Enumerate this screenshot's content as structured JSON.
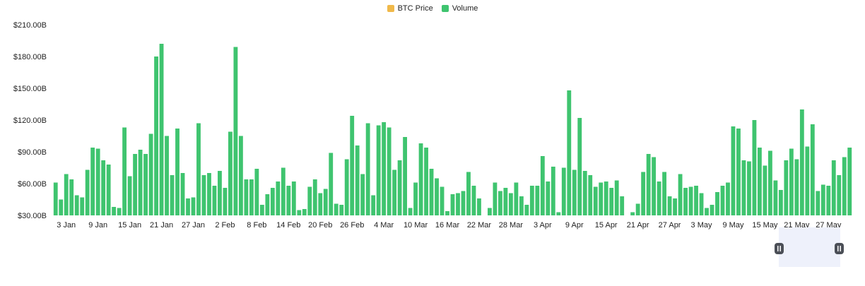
{
  "legend": {
    "items": [
      {
        "label": "BTC Price",
        "color": "#f0b94a"
      },
      {
        "label": "Volume",
        "color": "#3fc46f"
      }
    ]
  },
  "chart_data": {
    "type": "bar",
    "title": "",
    "xlabel": "",
    "ylabel": "",
    "y_unit": "billion USD",
    "ylim": [
      30,
      210
    ],
    "y_ticks": [
      30,
      60,
      90,
      120,
      150,
      180,
      210
    ],
    "y_tick_labels": [
      "$30.00B",
      "$60.00B",
      "$90.00B",
      "$120.00B",
      "$150.00B",
      "$180.00B",
      "$210.00B"
    ],
    "x_tick_labels": [
      {
        "label": "3 Jan",
        "index": 2
      },
      {
        "label": "9 Jan",
        "index": 8
      },
      {
        "label": "15 Jan",
        "index": 14
      },
      {
        "label": "21 Jan",
        "index": 20
      },
      {
        "label": "27 Jan",
        "index": 26
      },
      {
        "label": "2 Feb",
        "index": 32
      },
      {
        "label": "8 Feb",
        "index": 38
      },
      {
        "label": "14 Feb",
        "index": 44
      },
      {
        "label": "20 Feb",
        "index": 50
      },
      {
        "label": "26 Feb",
        "index": 56
      },
      {
        "label": "4 Mar",
        "index": 62
      },
      {
        "label": "10 Mar",
        "index": 68
      },
      {
        "label": "16 Mar",
        "index": 74
      },
      {
        "label": "22 Mar",
        "index": 80
      },
      {
        "label": "28 Mar",
        "index": 86
      },
      {
        "label": "3 Apr",
        "index": 92
      },
      {
        "label": "9 Apr",
        "index": 98
      },
      {
        "label": "15 Apr",
        "index": 104
      },
      {
        "label": "21 Apr",
        "index": 110
      },
      {
        "label": "27 Apr",
        "index": 116
      },
      {
        "label": "3 May",
        "index": 122
      },
      {
        "label": "9 May",
        "index": 128
      },
      {
        "label": "15 May",
        "index": 134
      },
      {
        "label": "21 May",
        "index": 140
      },
      {
        "label": "27 May",
        "index": 146
      }
    ],
    "series": [
      {
        "name": "Volume",
        "color": "#3fc46f",
        "values": [
          61,
          45,
          69,
          64,
          49,
          47,
          73,
          94,
          93,
          82,
          78,
          38,
          37,
          113,
          67,
          88,
          92,
          88,
          107,
          180,
          192,
          105,
          68,
          112,
          70,
          46,
          47,
          117,
          68,
          70,
          58,
          72,
          56,
          109,
          189,
          105,
          64,
          64,
          74,
          40,
          50,
          56,
          62,
          75,
          58,
          62,
          35,
          36,
          57,
          64,
          51,
          55,
          89,
          41,
          40,
          83,
          124,
          96,
          69,
          117,
          49,
          115,
          118,
          113,
          73,
          82,
          104,
          37,
          61,
          98,
          94,
          74,
          65,
          57,
          34,
          50,
          51,
          53,
          71,
          58,
          46,
          30,
          37,
          61,
          53,
          56,
          51,
          61,
          48,
          40,
          58,
          58,
          86,
          62,
          76,
          33,
          75,
          148,
          73,
          122,
          72,
          68,
          57,
          61,
          62,
          56,
          63,
          48,
          29,
          33,
          41,
          71,
          88,
          85,
          62,
          71,
          48,
          46,
          69,
          56,
          57,
          58,
          51,
          37,
          40,
          52,
          58,
          61,
          114,
          112,
          82,
          81,
          120,
          94,
          77,
          91,
          63,
          54,
          82,
          93,
          83,
          130,
          95,
          116,
          53,
          59,
          58,
          82,
          68,
          85,
          94
        ]
      }
    ],
    "grid": false,
    "legend_position": "top-center",
    "navigator": {
      "visible": true
    }
  }
}
